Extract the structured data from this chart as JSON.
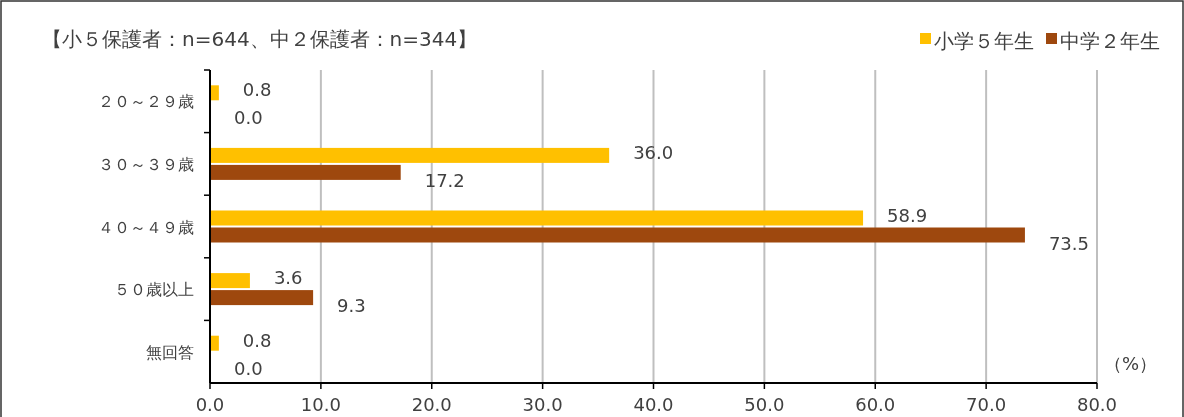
{
  "chart_data": {
    "type": "bar",
    "orientation": "horizontal",
    "title": "【小５保護者：n=644、中２保護者：n=344】",
    "xlabel": "（%）",
    "categories": [
      "２０～２９歳",
      "３０～３９歳",
      "４０～４９歳",
      "５０歳以上",
      "無回答"
    ],
    "series": [
      {
        "name": "小学５年生",
        "color": "#ffc000",
        "values": [
          0.8,
          36.0,
          58.9,
          3.6,
          0.8
        ],
        "value_labels": [
          "0.8",
          "36.0",
          "58.9",
          "3.6",
          "0.8"
        ]
      },
      {
        "name": "中学２年生",
        "color": "#9e480e",
        "values": [
          0.0,
          17.2,
          73.5,
          9.3,
          0.0
        ],
        "value_labels": [
          "0.0",
          "17.2",
          "73.5",
          "9.3",
          "0.0"
        ]
      }
    ],
    "xlim": [
      0,
      80
    ],
    "xticks": [
      {
        "value": 0,
        "label": "0.0"
      },
      {
        "value": 10,
        "label": "10.0"
      },
      {
        "value": 20,
        "label": "20.0"
      },
      {
        "value": 30,
        "label": "30.0"
      },
      {
        "value": 40,
        "label": "40.0"
      },
      {
        "value": 50,
        "label": "50.0"
      },
      {
        "value": 60,
        "label": "60.0"
      },
      {
        "value": 70,
        "label": "70.0"
      },
      {
        "value": 80,
        "label": "80.0"
      }
    ],
    "grid": "x",
    "legend": "top right"
  }
}
